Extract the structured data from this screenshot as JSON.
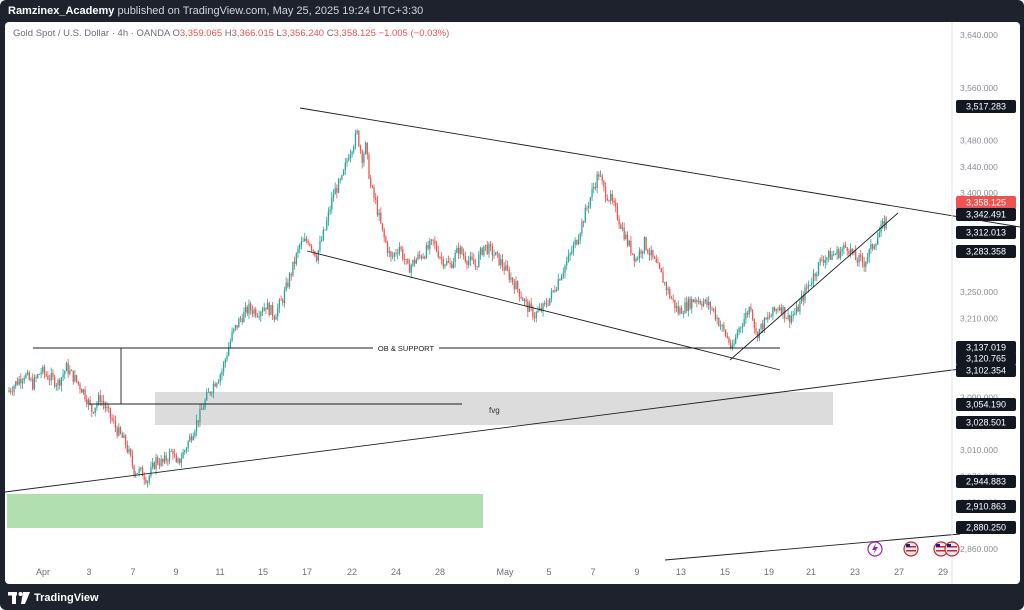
{
  "header": {
    "user": "Ramzinex_Academy",
    "published_text": "published on TradingView.com, May 25, 2025 19:24 UTC+3:30"
  },
  "legend": {
    "symbol": "Gold Spot / U.S. Dollar · 4h · OANDA",
    "o_label": "O",
    "o": "3,359.065",
    "h_label": "H",
    "h": "3,366.015",
    "l_label": "L",
    "l": "3,356.240",
    "c_label": "C",
    "c": "3,358.125",
    "change": "−1.005 (−0.03%)"
  },
  "colors": {
    "up": "#26a69a",
    "down": "#ef5350",
    "zone_fvg": "#dcdcdc",
    "zone_support": "#b2dfb0",
    "line": "#1f1f1f",
    "price_tag": "#131722",
    "last_price": "#ef5350"
  },
  "footer": {
    "brand": "TradingView",
    "brand_icon": "tradingview-logo-icon"
  },
  "chart_data": {
    "type": "candlestick",
    "title": "Gold Spot / U.S. Dollar · 4h · OANDA",
    "ylim": [
      2840,
      3660
    ],
    "y_ticks": [
      "3,640.000",
      "3,560.000",
      "3,480.000",
      "3,440.000",
      "3,400.000",
      "3,250.000",
      "3,210.000",
      "3,170.000",
      "3,090.000",
      "3,010.000",
      "2,970.000",
      "2,930.000",
      "2,860.000"
    ],
    "x_ticks": [
      "Apr",
      "3",
      "7",
      "9",
      "11",
      "15",
      "17",
      "22",
      "24",
      "28",
      "May",
      "5",
      "7",
      "9",
      "13",
      "15",
      "19",
      "21",
      "23",
      "27",
      "29"
    ],
    "price_tags": [
      {
        "value": "3,517.283",
        "last": false
      },
      {
        "value": "3,358.125",
        "last": true
      },
      {
        "value": "3,342.491",
        "last": false
      },
      {
        "value": "3,312.013",
        "last": false
      },
      {
        "value": "3,283.358",
        "last": false
      },
      {
        "value": "3,137.019",
        "last": false
      },
      {
        "value": "3,120.765",
        "last": false
      },
      {
        "value": "3,102.354",
        "last": false
      },
      {
        "value": "3,054.190",
        "last": false
      },
      {
        "value": "3,028.501",
        "last": false
      },
      {
        "value": "2,944.883",
        "last": false
      },
      {
        "value": "2,910.863",
        "last": false
      },
      {
        "value": "2,880.250",
        "last": false
      }
    ],
    "anchors": [
      [
        0,
        3098
      ],
      [
        10,
        3125
      ],
      [
        15,
        3110
      ],
      [
        20,
        3130
      ],
      [
        25,
        3120
      ],
      [
        30,
        3112
      ],
      [
        35,
        3135
      ],
      [
        40,
        3118
      ],
      [
        45,
        3100
      ],
      [
        50,
        3070
      ],
      [
        55,
        3090
      ],
      [
        60,
        3065
      ],
      [
        65,
        3040
      ],
      [
        70,
        3020
      ],
      [
        75,
        2980
      ],
      [
        80,
        2975
      ],
      [
        83,
        2965
      ],
      [
        88,
        2995
      ],
      [
        92,
        2990
      ],
      [
        98,
        3010
      ],
      [
        100,
        2985
      ],
      [
        105,
        3010
      ],
      [
        110,
        3040
      ],
      [
        115,
        3070
      ],
      [
        118,
        3090
      ],
      [
        122,
        3110
      ],
      [
        127,
        3130
      ],
      [
        133,
        3185
      ],
      [
        138,
        3210
      ],
      [
        143,
        3225
      ],
      [
        148,
        3220
      ],
      [
        153,
        3230
      ],
      [
        158,
        3215
      ],
      [
        163,
        3240
      ],
      [
        168,
        3280
      ],
      [
        173,
        3320
      ],
      [
        178,
        3330
      ],
      [
        183,
        3305
      ],
      [
        188,
        3345
      ],
      [
        193,
        3400
      ],
      [
        198,
        3420
      ],
      [
        202,
        3460
      ],
      [
        207,
        3490
      ],
      [
        210,
        3455
      ],
      [
        212,
        3470
      ],
      [
        215,
        3410
      ],
      [
        218,
        3385
      ],
      [
        222,
        3340
      ],
      [
        227,
        3300
      ],
      [
        232,
        3320
      ],
      [
        237,
        3285
      ],
      [
        242,
        3300
      ],
      [
        247,
        3310
      ],
      [
        252,
        3325
      ],
      [
        257,
        3300
      ],
      [
        262,
        3290
      ],
      [
        267,
        3315
      ],
      [
        272,
        3300
      ],
      [
        277,
        3290
      ],
      [
        282,
        3320
      ],
      [
        287,
        3310
      ],
      [
        292,
        3295
      ],
      [
        297,
        3275
      ],
      [
        302,
        3255
      ],
      [
        307,
        3230
      ],
      [
        312,
        3215
      ],
      [
        317,
        3225
      ],
      [
        322,
        3245
      ],
      [
        327,
        3275
      ],
      [
        332,
        3300
      ],
      [
        337,
        3330
      ],
      [
        342,
        3370
      ],
      [
        347,
        3410
      ],
      [
        350,
        3430
      ],
      [
        353,
        3405
      ],
      [
        357,
        3390
      ],
      [
        362,
        3360
      ],
      [
        367,
        3325
      ],
      [
        372,
        3300
      ],
      [
        377,
        3325
      ],
      [
        382,
        3300
      ],
      [
        387,
        3275
      ],
      [
        392,
        3245
      ],
      [
        397,
        3220
      ],
      [
        402,
        3230
      ],
      [
        407,
        3240
      ],
      [
        412,
        3235
      ],
      [
        417,
        3225
      ],
      [
        422,
        3200
      ],
      [
        427,
        3175
      ],
      [
        429,
        3160
      ],
      [
        432,
        3190
      ],
      [
        437,
        3215
      ],
      [
        440,
        3230
      ],
      [
        443,
        3185
      ],
      [
        447,
        3200
      ],
      [
        452,
        3215
      ],
      [
        457,
        3230
      ],
      [
        462,
        3210
      ],
      [
        467,
        3220
      ],
      [
        472,
        3250
      ],
      [
        477,
        3275
      ],
      [
        482,
        3300
      ],
      [
        487,
        3305
      ],
      [
        492,
        3310
      ],
      [
        497,
        3320
      ],
      [
        502,
        3300
      ],
      [
        507,
        3295
      ],
      [
        512,
        3320
      ],
      [
        517,
        3345
      ],
      [
        520,
        3358
      ]
    ]
  }
}
